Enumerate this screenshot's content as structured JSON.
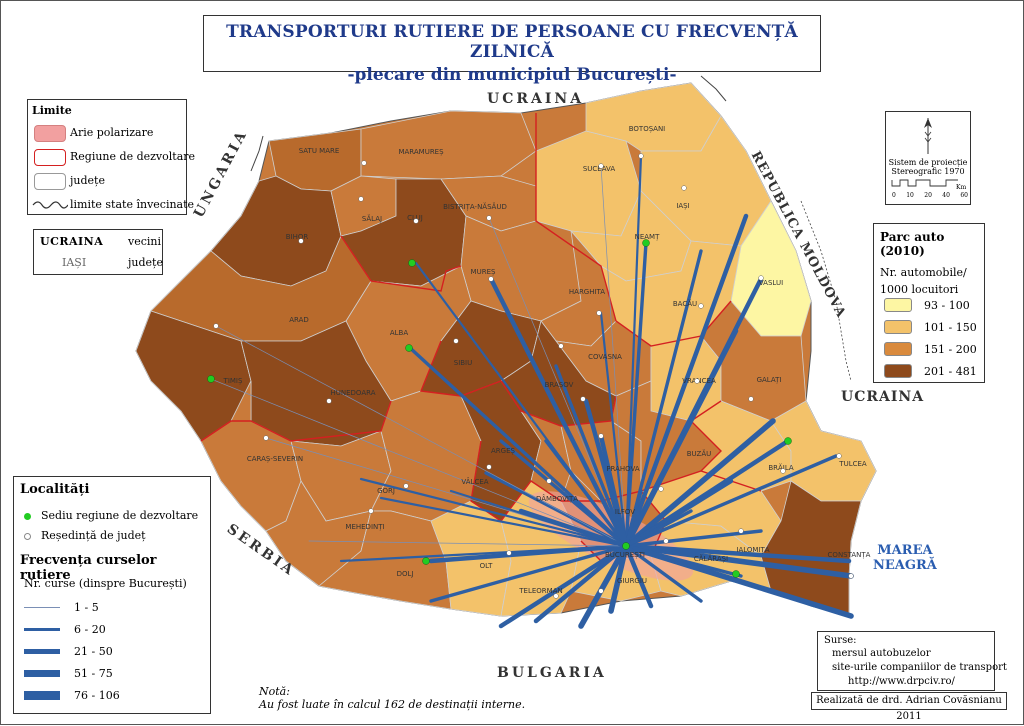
{
  "title": {
    "line1": "TRANSPORTURI RUTIERE DE PERSOANE CU FRECVENȚĂ ZILNICĂ",
    "line2": "-plecare din municipiul București-"
  },
  "legend_limite": {
    "header": "Limite",
    "items": [
      {
        "label": "Arie polarizare",
        "swatch": "#f2a0a0"
      },
      {
        "label": "Regiune de dezvoltare",
        "swatch": "#ffffff",
        "border": "#d42020"
      },
      {
        "label": "județe",
        "swatch": "#ffffff",
        "border": "#999999"
      },
      {
        "label": "limite state învecinate",
        "icon": "border-line-icon"
      }
    ]
  },
  "legend_vecini": {
    "country_sample": "UCRAINA",
    "country_label": "vecini",
    "county_sample": "IAȘI",
    "county_label": "județe"
  },
  "legend_localitati": {
    "header": "Localități",
    "items": [
      {
        "label": "Sediu regiune de dezvoltare",
        "color": "#22cc22"
      },
      {
        "label": "Reședință de județ",
        "color": "#ffffff"
      }
    ],
    "freq_header": "Frecvența curselor rutiere",
    "freq_sub": "Nr. curse (dinspre București)",
    "freq_items": [
      "1 - 5",
      "6 - 20",
      "21 - 50",
      "51 - 75",
      "76 - 106"
    ]
  },
  "legend_parc": {
    "header": "Parc auto (2010)",
    "sub1": "Nr. automobile/",
    "sub2": "1000 locuitori",
    "classes": [
      {
        "label": "93 - 100",
        "color": "#fdf6a3"
      },
      {
        "label": "101 - 150",
        "color": "#f3c26a"
      },
      {
        "label": "151 - 200",
        "color": "#d98a3d"
      },
      {
        "label": "201 - 481",
        "color": "#8e4a1c"
      }
    ]
  },
  "legend_projection": {
    "line1": "Sistem de proiecție",
    "line2": "Stereografic 1970",
    "scale_ticks": [
      "0",
      "10",
      "20",
      "40",
      "60"
    ],
    "scale_unit": "Km"
  },
  "sources": {
    "header": "Surse:",
    "items": [
      "mersul autobuzelor",
      "site-urile companiilor de transport",
      "http://www.drpciv.ro/"
    ]
  },
  "author": "Realizată de drd. Adrian Covăsnianu 2011",
  "note": {
    "label": "Notă:",
    "text": "Au fost luate în calcul 162 de destinații interne."
  },
  "countries": {
    "north": "UCRAINA",
    "west": "UNGARIA",
    "east": "REPUBLICA MOLDOVA",
    "east2": "UCRAINA",
    "south": "BULGARIA",
    "southwest": "SERBIA"
  },
  "sea": {
    "line1": "MAREA",
    "line2": "NEAGRĂ"
  },
  "counties": [
    "SATU MARE",
    "MARAMUREȘ",
    "BOTOȘANI",
    "SUCEAVA",
    "SĂLAJ",
    "BISTRIȚA-NĂSĂUD",
    "IAȘI",
    "BIHOR",
    "CLUJ",
    "NEAMȚ",
    "VASLUI",
    "MUREȘ",
    "HARGHITA",
    "BACĂU",
    "ARAD",
    "ALBA",
    "SIBIU",
    "COVASNA",
    "VRANCEA",
    "GALAȚI",
    "TIMIȘ",
    "HUNEDOARA",
    "BRAȘOV",
    "CARAȘ-SEVERIN",
    "ARGEȘ",
    "PRAHOVA",
    "BUZĂU",
    "BRĂILA",
    "TULCEA",
    "GORJ",
    "VÂLCEA",
    "DÂMBOVIȚA",
    "IALOMIȚA",
    "MEHEDINȚI",
    "ILFOV",
    "BUCUREȘTI",
    "CĂLĂRAȘI",
    "CONSTANȚA",
    "DOLJ",
    "OLT",
    "TELEORMAN",
    "GIURGIU"
  ]
}
